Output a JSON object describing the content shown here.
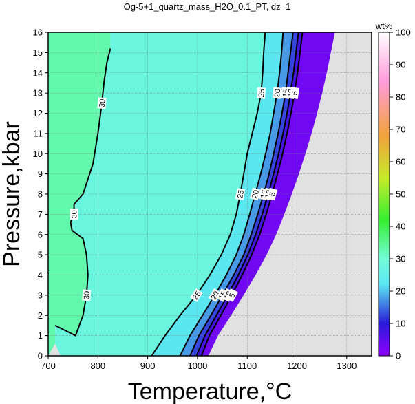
{
  "chart_data": {
    "type": "heatmap",
    "title": "Og-5+1_quartz_mass_H2O_0.1_PT, dz=1",
    "xlabel": "Temperature,°C",
    "ylabel": "Pressure,kbar",
    "xlim": [
      700,
      1350
    ],
    "ylim": [
      0,
      16
    ],
    "x_ticks": [
      700,
      800,
      900,
      1000,
      1100,
      1200,
      1300
    ],
    "y_ticks": [
      0,
      1,
      2,
      3,
      4,
      5,
      6,
      7,
      8,
      9,
      10,
      11,
      12,
      13,
      14,
      15,
      16
    ],
    "grid": true,
    "colorbar": {
      "label": "wt%",
      "range": [
        0,
        100
      ],
      "ticks": [
        0,
        10,
        20,
        30,
        40,
        50,
        60,
        70,
        80,
        90,
        100
      ],
      "stops": [
        {
          "value": 0,
          "color": "#9000ff"
        },
        {
          "value": 10,
          "color": "#2a1ad8"
        },
        {
          "value": 22,
          "color": "#59e6f2"
        },
        {
          "value": 30,
          "color": "#72fcd7"
        },
        {
          "value": 42,
          "color": "#34f030"
        },
        {
          "value": 55,
          "color": "#c6ea2a"
        },
        {
          "value": 68,
          "color": "#f2a23a"
        },
        {
          "value": 85,
          "color": "#ff9bdc"
        },
        {
          "value": 100,
          "color": "#ffffff"
        }
      ]
    },
    "background_color": "#e1e1e1",
    "contours": [
      {
        "level": 30,
        "major": true,
        "label": "30",
        "points": [
          [
            714,
            1.5
          ],
          [
            755,
            1.0
          ],
          [
            770,
            2.0
          ],
          [
            777,
            3.0
          ],
          [
            780,
            4.0
          ],
          [
            777,
            5.0
          ],
          [
            770,
            5.8
          ],
          [
            748,
            6.2
          ],
          [
            745,
            6.6
          ],
          [
            752,
            7.0
          ],
          [
            752,
            7.5
          ],
          [
            770,
            8.0
          ],
          [
            790,
            9.5
          ],
          [
            800,
            11.0
          ],
          [
            808,
            12.5
          ],
          [
            812,
            13.5
          ],
          [
            818,
            14.5
          ],
          [
            825,
            15.2
          ]
        ]
      },
      {
        "level": 25,
        "major": true,
        "label": "25",
        "points": [
          [
            908,
            0
          ],
          [
            935,
            1.0
          ],
          [
            965,
            2.0
          ],
          [
            998,
            3.0
          ],
          [
            1025,
            4.0
          ],
          [
            1048,
            5.0
          ],
          [
            1066,
            6.0
          ],
          [
            1078,
            7.0
          ],
          [
            1086,
            8.0
          ],
          [
            1093,
            9.0
          ],
          [
            1100,
            10.0
          ],
          [
            1110,
            11.0
          ],
          [
            1120,
            12.0
          ],
          [
            1128,
            13.0
          ],
          [
            1131,
            14.0
          ],
          [
            1133,
            15.0
          ],
          [
            1136,
            16.0
          ]
        ]
      },
      {
        "level": 20,
        "major": true,
        "label": "20",
        "points": [
          [
            965,
            0
          ],
          [
            985,
            1.0
          ],
          [
            1010,
            2.0
          ],
          [
            1035,
            3.0
          ],
          [
            1058,
            4.0
          ],
          [
            1078,
            5.0
          ],
          [
            1093,
            6.0
          ],
          [
            1105,
            7.0
          ],
          [
            1116,
            8.0
          ],
          [
            1127,
            9.0
          ],
          [
            1137,
            10.0
          ],
          [
            1146,
            11.0
          ],
          [
            1153,
            12.0
          ],
          [
            1160,
            13.0
          ],
          [
            1165,
            14.0
          ],
          [
            1169,
            15.0
          ],
          [
            1172,
            16.0
          ]
        ]
      },
      {
        "level": 15,
        "major": true,
        "label": "15",
        "points": [
          [
            985,
            0
          ],
          [
            1003,
            1.0
          ],
          [
            1027,
            2.0
          ],
          [
            1050,
            3.0
          ],
          [
            1073,
            4.0
          ],
          [
            1093,
            5.0
          ],
          [
            1108,
            6.0
          ],
          [
            1121,
            7.0
          ],
          [
            1133,
            8.0
          ],
          [
            1144,
            9.0
          ],
          [
            1153,
            10.0
          ],
          [
            1162,
            11.0
          ],
          [
            1170,
            12.0
          ],
          [
            1177,
            13.0
          ],
          [
            1182,
            14.0
          ],
          [
            1187,
            15.0
          ],
          [
            1192,
            16.0
          ]
        ]
      },
      {
        "level": 10,
        "major": true,
        "label": "10",
        "points": [
          [
            998,
            0
          ],
          [
            1015,
            1.0
          ],
          [
            1038,
            2.0
          ],
          [
            1061,
            3.0
          ],
          [
            1082,
            4.0
          ],
          [
            1101,
            5.0
          ],
          [
            1117,
            6.0
          ],
          [
            1130,
            7.0
          ],
          [
            1142,
            8.0
          ],
          [
            1153,
            9.0
          ],
          [
            1163,
            10.0
          ],
          [
            1172,
            11.0
          ],
          [
            1180,
            12.0
          ],
          [
            1187,
            13.0
          ],
          [
            1193,
            14.0
          ],
          [
            1198,
            15.0
          ],
          [
            1203,
            16.0
          ]
        ]
      },
      {
        "level": 5,
        "major": true,
        "label": "5",
        "points": [
          [
            1008,
            0
          ],
          [
            1024,
            1.0
          ],
          [
            1047,
            2.0
          ],
          [
            1069,
            3.0
          ],
          [
            1090,
            4.0
          ],
          [
            1109,
            5.0
          ],
          [
            1125,
            6.0
          ],
          [
            1138,
            7.0
          ],
          [
            1150,
            8.0
          ],
          [
            1161,
            9.0
          ],
          [
            1171,
            10.0
          ],
          [
            1180,
            11.0
          ],
          [
            1188,
            12.0
          ],
          [
            1195,
            13.0
          ],
          [
            1201,
            14.0
          ],
          [
            1206,
            15.0
          ],
          [
            1211,
            16.0
          ]
        ]
      }
    ]
  }
}
